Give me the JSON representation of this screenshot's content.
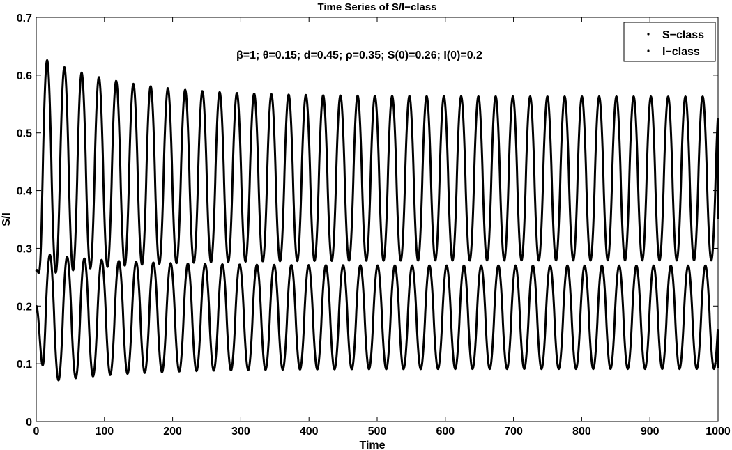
{
  "chart_data": {
    "type": "line",
    "title": "Time Series of S/I−class",
    "xlabel": "Time",
    "ylabel": "S/I",
    "xlim": [
      0,
      1000
    ],
    "ylim": [
      0,
      0.7
    ],
    "xticks": [
      0,
      100,
      200,
      300,
      400,
      500,
      600,
      700,
      800,
      900,
      1000
    ],
    "yticks": [
      0,
      0.1,
      0.2,
      0.3,
      0.4,
      0.5,
      0.6,
      0.7
    ],
    "xtick_labels": [
      "0",
      "100",
      "200",
      "300",
      "400",
      "500",
      "600",
      "700",
      "800",
      "900",
      "1000"
    ],
    "ytick_labels": [
      "0",
      "0.1",
      "0.2",
      "0.3",
      "0.4",
      "0.5",
      "0.6",
      "0.7"
    ],
    "annotation": "β=1; θ=0.15; d=0.45; ρ=0.35; S(0)=0.26; I(0)=0.2",
    "legend_position": "top-right",
    "grid": false,
    "line_color": "#000000",
    "series": [
      {
        "name": "S−class",
        "initial": 0.26,
        "period": 25.3,
        "first_peak_time": 16,
        "peak_start": 0.635,
        "peak_steady": 0.563,
        "trough_start": 0.252,
        "trough_steady": 0.279,
        "final_value": 0.35
      },
      {
        "name": "I−class",
        "initial": 0.2,
        "period": 25.3,
        "first_peak_time": 20,
        "peak_start": 0.292,
        "peak_steady": 0.27,
        "trough_start": 0.065,
        "trough_steady": 0.091,
        "final_value": 0.092
      }
    ]
  }
}
